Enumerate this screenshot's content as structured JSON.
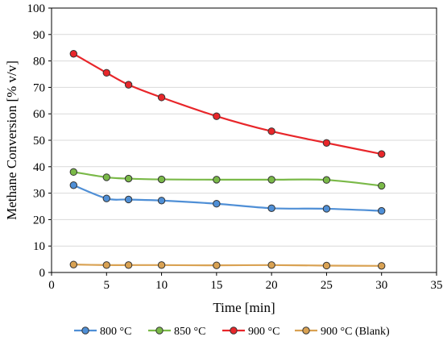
{
  "chart_data": {
    "type": "line",
    "title": "",
    "xlabel": "Time [min]",
    "ylabel": "Methane Conversion [% v/v]",
    "xlim": [
      0,
      35
    ],
    "ylim": [
      0,
      100
    ],
    "xticks": [
      0,
      5,
      10,
      15,
      20,
      25,
      30,
      35
    ],
    "yticks": [
      0,
      10,
      20,
      30,
      40,
      50,
      60,
      70,
      80,
      90,
      100
    ],
    "xtick_labels": [
      "0",
      "5",
      "10",
      "15",
      "20",
      "25",
      "30",
      "35"
    ],
    "ytick_labels": [
      "0",
      "10",
      "20",
      "30",
      "40",
      "50",
      "60",
      "70",
      "80",
      "90",
      "100"
    ],
    "grid": "horizontal",
    "legend_position": "bottom",
    "series": [
      {
        "name": "800 °C",
        "color": "#4f8fd6",
        "x": [
          2,
          5,
          7,
          10,
          15,
          20,
          25,
          30
        ],
        "y": [
          33.0,
          28.0,
          27.6,
          27.2,
          26.0,
          24.3,
          24.1,
          23.3
        ]
      },
      {
        "name": "850 °C",
        "color": "#7ab948",
        "x": [
          2,
          5,
          7,
          10,
          15,
          20,
          25,
          30
        ],
        "y": [
          38.0,
          36.0,
          35.5,
          35.2,
          35.1,
          35.1,
          35.0,
          32.8
        ]
      },
      {
        "name": "900 °C",
        "color": "#e8262a",
        "x": [
          2,
          5,
          7,
          10,
          15,
          20,
          25,
          30
        ],
        "y": [
          82.7,
          75.5,
          71.0,
          66.2,
          59.1,
          53.4,
          49.0,
          44.8
        ]
      },
      {
        "name": "900 °C (Blank)",
        "color": "#d9a253",
        "x": [
          2,
          5,
          7,
          10,
          15,
          20,
          25,
          30
        ],
        "y": [
          3.0,
          2.8,
          2.8,
          2.8,
          2.7,
          2.8,
          2.6,
          2.5
        ]
      }
    ]
  }
}
